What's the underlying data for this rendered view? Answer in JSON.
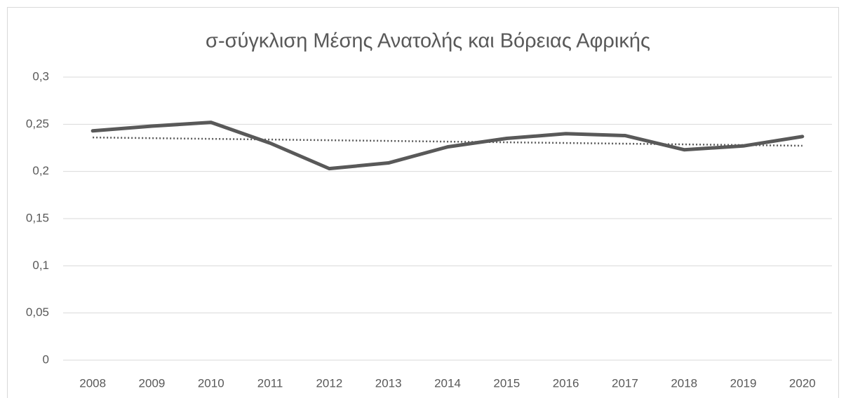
{
  "chart_data": {
    "type": "line",
    "title": "σ-σύγκλιση Μέσης Ανατολής και Βόρειας Αφρικής",
    "categories": [
      "2008",
      "2009",
      "2010",
      "2011",
      "2012",
      "2013",
      "2014",
      "2015",
      "2016",
      "2017",
      "2018",
      "2019",
      "2020"
    ],
    "series": [
      {
        "color": "#595959",
        "values": [
          0.243,
          0.248,
          0.252,
          0.23,
          0.203,
          0.209,
          0.226,
          0.235,
          0.24,
          0.238,
          0.223,
          0.227,
          0.237
        ]
      }
    ],
    "trendline": {
      "type": "linear",
      "color": "#595959"
    },
    "ylim": [
      0,
      0.3
    ],
    "yticks": [
      0,
      {
        "value": 0.05,
        "label": "0,05"
      },
      {
        "value": 0.1,
        "label": "0,1"
      },
      {
        "value": 0.15,
        "label": "0,15"
      },
      {
        "value": 0.2,
        "label": "0,2"
      },
      {
        "value": 0.25,
        "label": "0,25"
      },
      {
        "value": 0.3,
        "label": "0,3"
      }
    ],
    "grid": true
  }
}
